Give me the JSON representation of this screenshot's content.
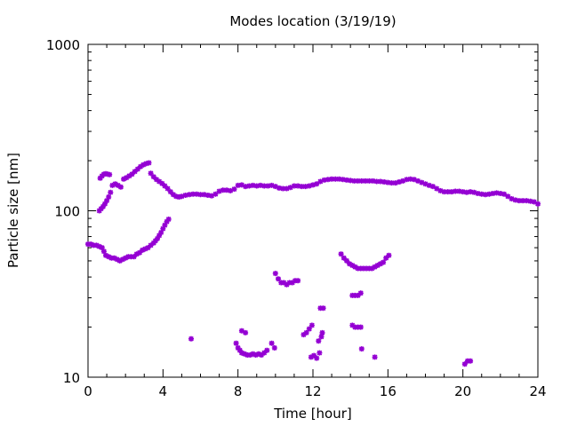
{
  "chart_data": {
    "type": "scatter",
    "title": "Modes location (3/19/19)",
    "xlabel": "Time [hour]",
    "ylabel": "Particle size [nm]",
    "xlim": [
      0,
      24
    ],
    "ylim": [
      10,
      1000
    ],
    "yscale": "log",
    "x_ticks": [
      0,
      4,
      8,
      12,
      16,
      20,
      24
    ],
    "y_ticks": [
      10,
      100,
      1000
    ],
    "grid": false,
    "legend": "none",
    "marker_color": "#9400d3",
    "series": [
      {
        "name": "",
        "points": [
          [
            0.0,
            63
          ],
          [
            0.15,
            63
          ],
          [
            0.3,
            62
          ],
          [
            0.45,
            62
          ],
          [
            0.6,
            61
          ],
          [
            0.75,
            60
          ],
          [
            0.85,
            57
          ],
          [
            0.95,
            54
          ],
          [
            1.1,
            53
          ],
          [
            1.25,
            52
          ],
          [
            1.4,
            52
          ],
          [
            1.55,
            51
          ],
          [
            1.7,
            50
          ],
          [
            1.85,
            51
          ],
          [
            2.0,
            52
          ],
          [
            2.15,
            53
          ],
          [
            2.3,
            53
          ],
          [
            2.45,
            53
          ],
          [
            2.6,
            55
          ],
          [
            2.75,
            56
          ],
          [
            2.9,
            58
          ],
          [
            3.05,
            59
          ],
          [
            3.2,
            60
          ],
          [
            3.35,
            62
          ],
          [
            3.5,
            64
          ],
          [
            3.6,
            66
          ],
          [
            3.7,
            68
          ],
          [
            3.8,
            71
          ],
          [
            3.9,
            74
          ],
          [
            4.0,
            78
          ],
          [
            4.1,
            82
          ],
          [
            4.2,
            86
          ],
          [
            4.3,
            89
          ],
          [
            0.6,
            100
          ],
          [
            0.7,
            103
          ],
          [
            0.8,
            106
          ],
          [
            0.9,
            110
          ],
          [
            1.0,
            115
          ],
          [
            1.1,
            121
          ],
          [
            1.2,
            129
          ],
          [
            0.65,
            157
          ],
          [
            0.75,
            162
          ],
          [
            0.85,
            166
          ],
          [
            0.95,
            167
          ],
          [
            1.05,
            166
          ],
          [
            1.15,
            165
          ],
          [
            1.3,
            142
          ],
          [
            1.45,
            145
          ],
          [
            1.6,
            142
          ],
          [
            1.75,
            139
          ],
          [
            1.9,
            155
          ],
          [
            2.05,
            158
          ],
          [
            2.2,
            162
          ],
          [
            2.35,
            166
          ],
          [
            2.5,
            172
          ],
          [
            2.65,
            178
          ],
          [
            2.8,
            184
          ],
          [
            2.95,
            189
          ],
          [
            3.1,
            192
          ],
          [
            3.25,
            194
          ],
          [
            3.35,
            168
          ],
          [
            3.5,
            160
          ],
          [
            3.65,
            154
          ],
          [
            3.8,
            150
          ],
          [
            3.95,
            146
          ],
          [
            4.1,
            141
          ],
          [
            4.25,
            136
          ],
          [
            4.4,
            130
          ],
          [
            4.55,
            125
          ],
          [
            4.7,
            122
          ],
          [
            4.85,
            121
          ],
          [
            5.0,
            122
          ],
          [
            5.2,
            124
          ],
          [
            5.4,
            125
          ],
          [
            5.6,
            126
          ],
          [
            5.8,
            126
          ],
          [
            6.0,
            125
          ],
          [
            6.2,
            125
          ],
          [
            6.4,
            124
          ],
          [
            6.6,
            123
          ],
          [
            6.8,
            126
          ],
          [
            7.0,
            131
          ],
          [
            7.2,
            133
          ],
          [
            7.4,
            133
          ],
          [
            7.6,
            132
          ],
          [
            7.8,
            135
          ],
          [
            8.0,
            142
          ],
          [
            8.2,
            143
          ],
          [
            8.4,
            140
          ],
          [
            8.6,
            141
          ],
          [
            8.8,
            142
          ],
          [
            9.0,
            141
          ],
          [
            9.2,
            142
          ],
          [
            9.4,
            141
          ],
          [
            9.6,
            141
          ],
          [
            9.8,
            142
          ],
          [
            10.0,
            140
          ],
          [
            10.2,
            137
          ],
          [
            10.4,
            136
          ],
          [
            10.6,
            136
          ],
          [
            10.8,
            138
          ],
          [
            11.0,
            141
          ],
          [
            11.2,
            141
          ],
          [
            11.4,
            140
          ],
          [
            11.6,
            140
          ],
          [
            11.8,
            141
          ],
          [
            12.0,
            143
          ],
          [
            12.2,
            145
          ],
          [
            12.4,
            150
          ],
          [
            12.6,
            153
          ],
          [
            12.8,
            154
          ],
          [
            13.0,
            155
          ],
          [
            13.2,
            155
          ],
          [
            13.4,
            155
          ],
          [
            13.6,
            154
          ],
          [
            13.8,
            153
          ],
          [
            14.0,
            152
          ],
          [
            14.2,
            151
          ],
          [
            14.4,
            151
          ],
          [
            14.6,
            151
          ],
          [
            14.8,
            151
          ],
          [
            15.0,
            151
          ],
          [
            15.2,
            151
          ],
          [
            15.4,
            150
          ],
          [
            15.6,
            150
          ],
          [
            15.8,
            149
          ],
          [
            16.0,
            148
          ],
          [
            16.2,
            147
          ],
          [
            16.4,
            147
          ],
          [
            16.6,
            149
          ],
          [
            16.8,
            151
          ],
          [
            17.0,
            154
          ],
          [
            17.2,
            155
          ],
          [
            17.4,
            154
          ],
          [
            17.6,
            151
          ],
          [
            17.8,
            148
          ],
          [
            18.0,
            145
          ],
          [
            18.2,
            142
          ],
          [
            18.4,
            140
          ],
          [
            18.6,
            136
          ],
          [
            18.8,
            132
          ],
          [
            19.0,
            130
          ],
          [
            19.2,
            130
          ],
          [
            19.4,
            130
          ],
          [
            19.6,
            131
          ],
          [
            19.8,
            131
          ],
          [
            20.0,
            130
          ],
          [
            20.2,
            129
          ],
          [
            20.4,
            130
          ],
          [
            20.6,
            129
          ],
          [
            20.8,
            127
          ],
          [
            21.0,
            126
          ],
          [
            21.2,
            125
          ],
          [
            21.4,
            126
          ],
          [
            21.6,
            127
          ],
          [
            21.8,
            128
          ],
          [
            22.0,
            127
          ],
          [
            22.2,
            126
          ],
          [
            22.4,
            122
          ],
          [
            22.6,
            118
          ],
          [
            22.8,
            116
          ],
          [
            23.0,
            115
          ],
          [
            23.2,
            115
          ],
          [
            23.4,
            115
          ],
          [
            23.6,
            114
          ],
          [
            23.8,
            113
          ],
          [
            24.0,
            110
          ],
          [
            5.5,
            17
          ],
          [
            7.9,
            16
          ],
          [
            8.0,
            15
          ],
          [
            8.1,
            14.5
          ],
          [
            8.2,
            14
          ],
          [
            8.35,
            13.8
          ],
          [
            8.5,
            13.6
          ],
          [
            8.65,
            13.6
          ],
          [
            8.8,
            13.8
          ],
          [
            8.95,
            13.6
          ],
          [
            9.1,
            13.8
          ],
          [
            9.25,
            13.6
          ],
          [
            9.4,
            14
          ],
          [
            9.55,
            14.5
          ],
          [
            8.2,
            19
          ],
          [
            8.4,
            18.5
          ],
          [
            9.8,
            16
          ],
          [
            9.95,
            15
          ],
          [
            10.0,
            42
          ],
          [
            10.15,
            39
          ],
          [
            10.3,
            37
          ],
          [
            10.45,
            37
          ],
          [
            10.6,
            36
          ],
          [
            10.75,
            37
          ],
          [
            10.9,
            37
          ],
          [
            11.05,
            38
          ],
          [
            11.2,
            38
          ],
          [
            11.5,
            18
          ],
          [
            11.65,
            18.5
          ],
          [
            11.8,
            19.5
          ],
          [
            11.95,
            20.5
          ],
          [
            11.9,
            13.2
          ],
          [
            12.05,
            13.5
          ],
          [
            12.2,
            13
          ],
          [
            12.35,
            14
          ],
          [
            12.3,
            16.5
          ],
          [
            12.45,
            17.5
          ],
          [
            12.5,
            18.5
          ],
          [
            12.4,
            26
          ],
          [
            12.55,
            26
          ],
          [
            13.5,
            55
          ],
          [
            13.65,
            52
          ],
          [
            13.8,
            50
          ],
          [
            13.95,
            48
          ],
          [
            14.1,
            47
          ],
          [
            14.25,
            46
          ],
          [
            14.4,
            45
          ],
          [
            14.55,
            45
          ],
          [
            14.7,
            45
          ],
          [
            14.85,
            45
          ],
          [
            15.0,
            45
          ],
          [
            15.15,
            45
          ],
          [
            15.3,
            46
          ],
          [
            15.45,
            47
          ],
          [
            15.6,
            48
          ],
          [
            15.75,
            49
          ],
          [
            15.9,
            52
          ],
          [
            16.05,
            54
          ],
          [
            14.1,
            31
          ],
          [
            14.25,
            31
          ],
          [
            14.4,
            31
          ],
          [
            14.55,
            32
          ],
          [
            14.1,
            20.5
          ],
          [
            14.25,
            20
          ],
          [
            14.4,
            20
          ],
          [
            14.55,
            20
          ],
          [
            14.6,
            14.8
          ],
          [
            15.3,
            13.2
          ],
          [
            20.1,
            12
          ],
          [
            20.25,
            12.5
          ],
          [
            20.4,
            12.5
          ]
        ]
      }
    ]
  }
}
